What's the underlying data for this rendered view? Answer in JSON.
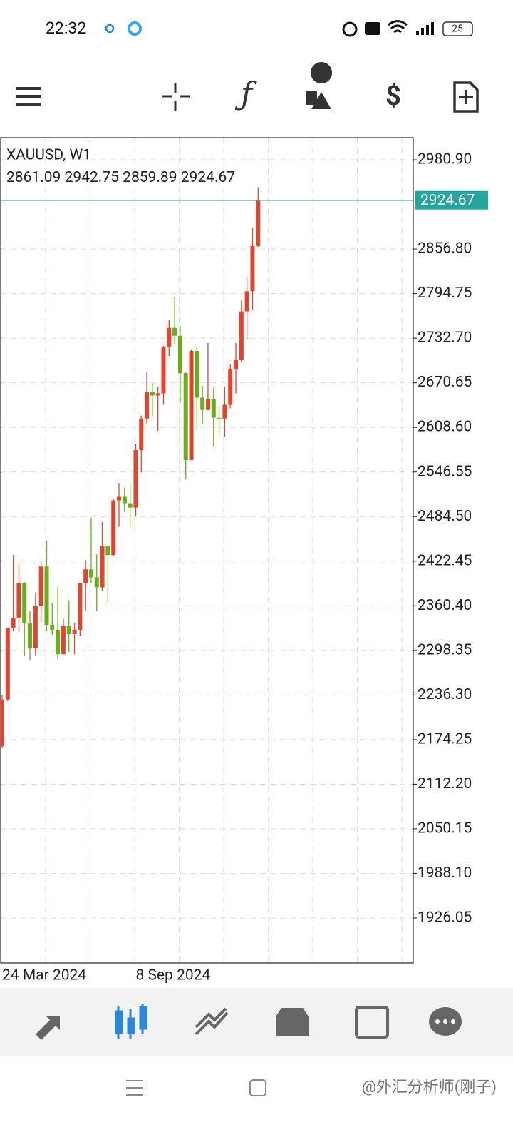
{
  "status_bar": {
    "time": "22:32",
    "battery": "25"
  },
  "chart_data": {
    "type": "candlestick",
    "title": "XAUUSD, W1",
    "categories": [
      "24 Mar 2024",
      null,
      null,
      null,
      null,
      null,
      null,
      null,
      null,
      null,
      null,
      null,
      null,
      null,
      null,
      null,
      null,
      null,
      null,
      null,
      null,
      null,
      null,
      null,
      "8 Sep 2024",
      null,
      null,
      null,
      null,
      null,
      null,
      null,
      null,
      null,
      null,
      null,
      null,
      null,
      null,
      null,
      null,
      null,
      null,
      null,
      null,
      null,
      null
    ],
    "open": [
      2165,
      2230,
      2330,
      2344,
      2392,
      2337,
      2301,
      2360,
      2415,
      2334,
      2327,
      2293,
      2333,
      2321,
      2327,
      2392,
      2411,
      2400,
      2386,
      2443,
      2431,
      2507,
      2512,
      2503,
      2497,
      2577,
      2621,
      2658,
      2653,
      2656,
      2720,
      2747,
      2736,
      2684,
      2563,
      2715,
      2650,
      2633,
      2648,
      2622,
      2621,
      2640,
      2690,
      2703,
      2770,
      2798,
      2861.09
    ],
    "high": [
      2236,
      2330,
      2431,
      2418,
      2393,
      2353,
      2378,
      2422,
      2450,
      2364,
      2387,
      2342,
      2368,
      2337,
      2392,
      2424,
      2483,
      2432,
      2477,
      2443,
      2509,
      2531,
      2525,
      2529,
      2585,
      2625,
      2685,
      2670,
      2665,
      2722,
      2758,
      2790,
      2750,
      2685,
      2716,
      2721,
      2666,
      2726,
      2664,
      2638,
      2665,
      2697,
      2726,
      2785,
      2817,
      2886,
      2942.75
    ],
    "low": [
      2163,
      2228,
      2325,
      2324,
      2291,
      2285,
      2291,
      2338,
      2325,
      2320,
      2286,
      2293,
      2296,
      2293,
      2318,
      2353,
      2392,
      2353,
      2381,
      2364,
      2430,
      2470,
      2491,
      2472,
      2485,
      2546,
      2614,
      2624,
      2604,
      2640,
      2708,
      2725,
      2643,
      2536,
      2563,
      2605,
      2613,
      2632,
      2583,
      2600,
      2596,
      2635,
      2656,
      2699,
      2730,
      2772,
      2859.89
    ],
    "close": [
      2230,
      2330,
      2344,
      2392,
      2337,
      2301,
      2360,
      2415,
      2334,
      2327,
      2293,
      2333,
      2321,
      2327,
      2392,
      2411,
      2400,
      2386,
      2443,
      2431,
      2507,
      2512,
      2503,
      2497,
      2577,
      2621,
      2658,
      2653,
      2656,
      2720,
      2747,
      2736,
      2684,
      2563,
      2715,
      2650,
      2633,
      2648,
      2622,
      2621,
      2640,
      2690,
      2703,
      2770,
      2798,
      2861,
      2924.67
    ],
    "up_color": "#e0452f",
    "down_color": "#6aac1c",
    "price_line_color": "#26a69a",
    "ylim": [
      1863.5,
      3011.7
    ],
    "yticks": [
      {
        "value": 2980.9,
        "label": "2980.90"
      },
      {
        "value": 2856.8,
        "label": "2856.80"
      },
      2794.75,
      {
        "value": 2732.7,
        "label": "2732.70"
      },
      2670.65,
      {
        "value": 2608.6,
        "label": "2608.60"
      },
      2546.55,
      {
        "value": 2484.5,
        "label": "2484.50"
      },
      2422.45,
      {
        "value": 2360.4,
        "label": "2360.40"
      },
      2298.35,
      {
        "value": 2236.3,
        "label": "2236.30"
      },
      2174.25,
      {
        "value": 2112.2,
        "label": "2112.20"
      },
      2050.15,
      {
        "value": 1988.1,
        "label": "1988.10"
      },
      1926.05
    ],
    "grid": true
  },
  "watermark": "@外汇分析师(刚子)"
}
